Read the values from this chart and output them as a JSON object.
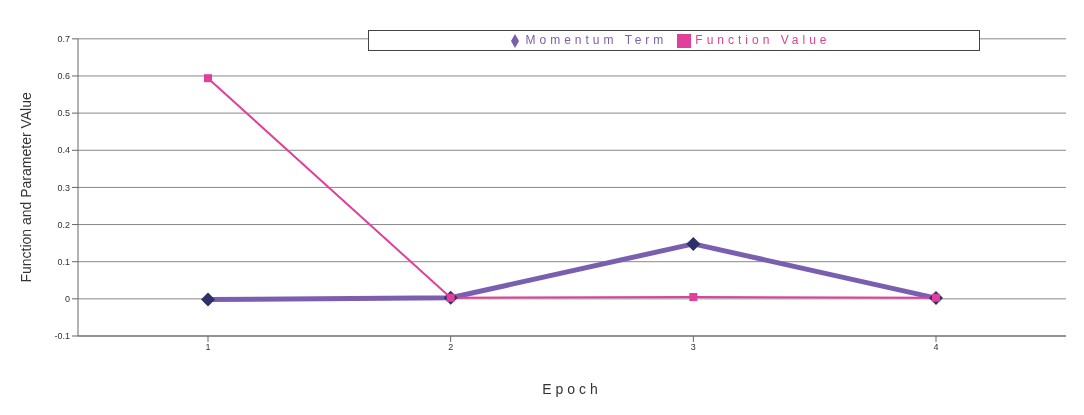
{
  "chart_data": {
    "type": "line",
    "xlabel": "Epoch",
    "ylabel": "Function  and Parameter VAlue",
    "categories": [
      "1",
      "2",
      "3",
      "4"
    ],
    "series": [
      {
        "name": "Momentum Term",
        "color": "#7a5fb0",
        "marker": "diamond",
        "values": [
          -0.002,
          0.003,
          0.148,
          0.002
        ]
      },
      {
        "name": "Function Value",
        "color": "#e0409a",
        "marker": "square",
        "values": [
          0.594,
          0.003,
          0.005,
          0.003
        ]
      }
    ],
    "ylim": [
      -0.1,
      0.7
    ],
    "yticks": [
      -0.1,
      0,
      0.1,
      0.2,
      0.3,
      0.4,
      0.5,
      0.6,
      0.7
    ],
    "grid": "y",
    "legend": "top"
  }
}
